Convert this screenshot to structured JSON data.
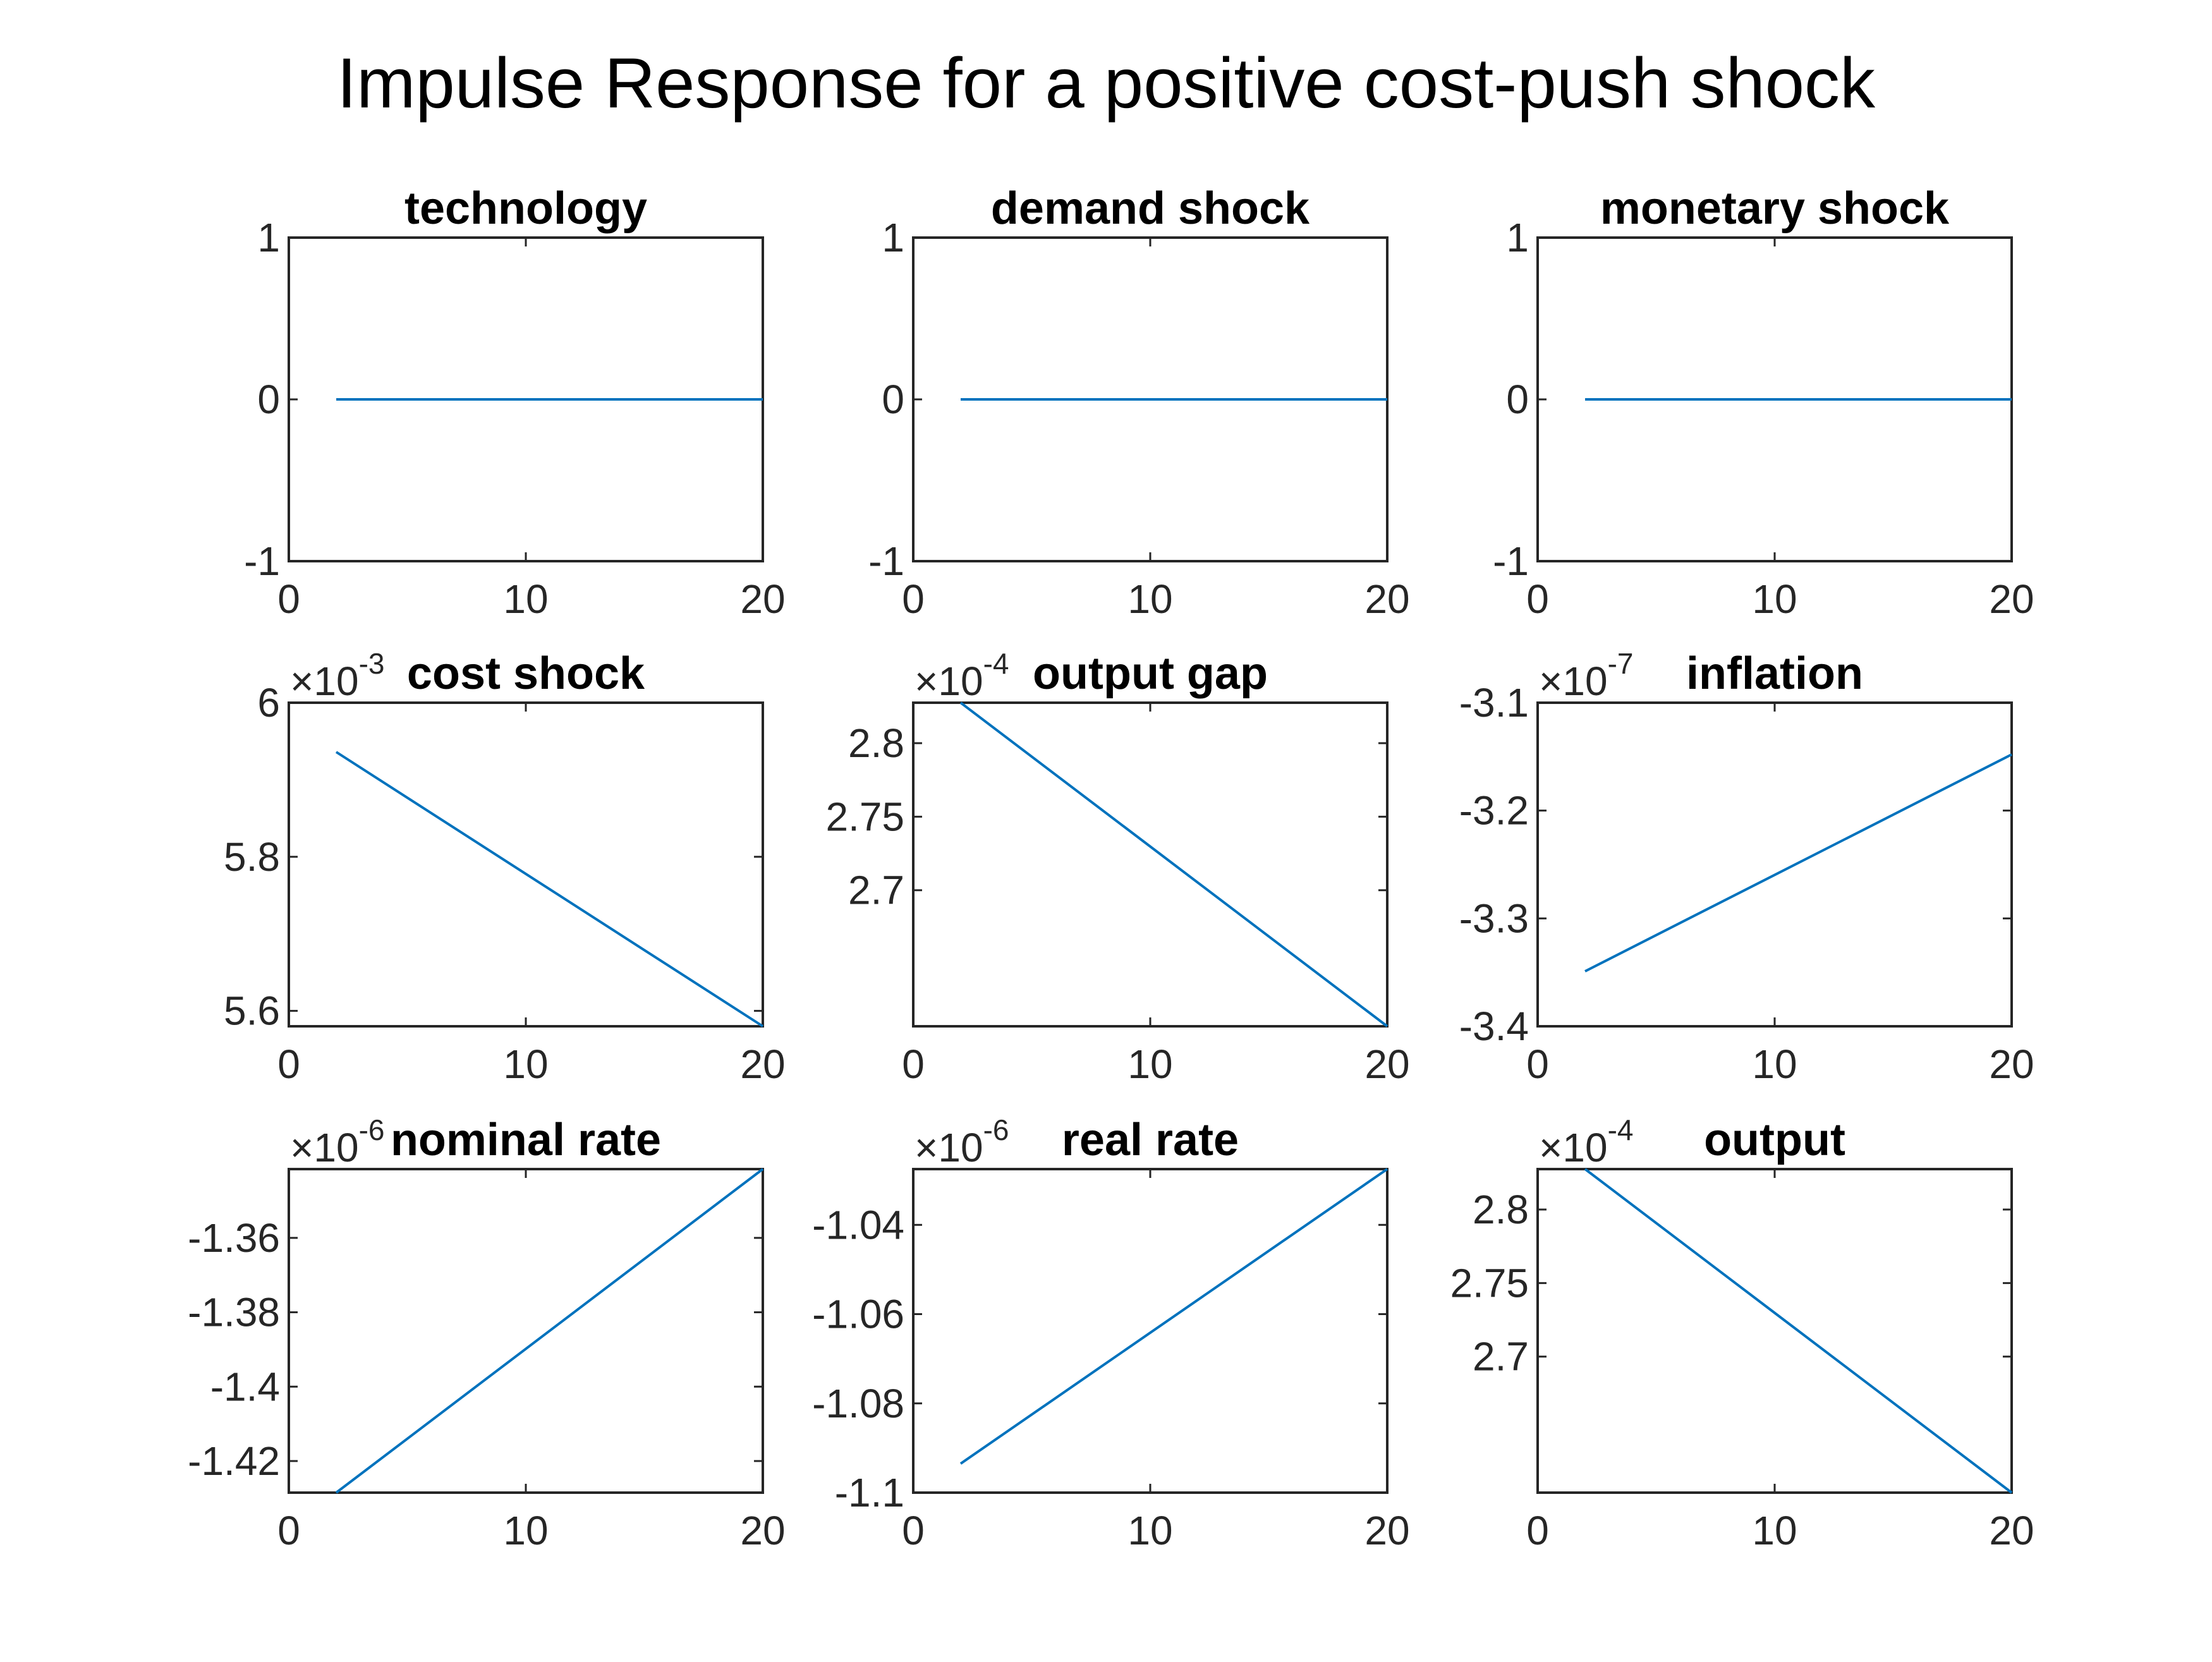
{
  "title": "Impulse Response for a positive cost-push shock",
  "colors": {
    "series": "#0072BD",
    "axes": "#262626",
    "background": "#ffffff"
  },
  "chart_data": [
    {
      "type": "line",
      "title": "technology",
      "exponent": "",
      "xlim": [
        0,
        20
      ],
      "ylim": [
        -1,
        1
      ],
      "xticks": [
        "0",
        "10",
        "20"
      ],
      "yticks": [
        -1,
        0,
        1
      ],
      "yticklabels": [
        "-1",
        "0",
        "1"
      ],
      "x": [
        2,
        20
      ],
      "y": [
        0,
        0
      ]
    },
    {
      "type": "line",
      "title": "demand shock",
      "exponent": "",
      "xlim": [
        0,
        20
      ],
      "ylim": [
        -1,
        1
      ],
      "xticks": [
        "0",
        "10",
        "20"
      ],
      "yticks": [
        -1,
        0,
        1
      ],
      "yticklabels": [
        "-1",
        "0",
        "1"
      ],
      "x": [
        2,
        20
      ],
      "y": [
        0,
        0
      ]
    },
    {
      "type": "line",
      "title": "monetary shock",
      "exponent": "",
      "xlim": [
        0,
        20
      ],
      "ylim": [
        -1,
        1
      ],
      "xticks": [
        "0",
        "10",
        "20"
      ],
      "yticks": [
        -1,
        0,
        1
      ],
      "yticklabels": [
        "-1",
        "0",
        "1"
      ],
      "x": [
        2,
        20
      ],
      "y": [
        0,
        0
      ]
    },
    {
      "type": "line",
      "title": "cost shock",
      "exponent": "-3",
      "xlim": [
        0,
        20
      ],
      "ylim": [
        5.58,
        6.0
      ],
      "xticks": [
        "0",
        "10",
        "20"
      ],
      "yticks": [
        5.6,
        5.8,
        6.0
      ],
      "yticklabels": [
        "5.6",
        "5.8",
        "6"
      ],
      "x": [
        2,
        20
      ],
      "y": [
        5.936,
        5.58
      ]
    },
    {
      "type": "line",
      "title": "output gap",
      "exponent": "-4",
      "xlim": [
        0,
        20
      ],
      "ylim": [
        2.6075,
        2.8275
      ],
      "xticks": [
        "0",
        "10",
        "20"
      ],
      "yticks": [
        2.7,
        2.75,
        2.8
      ],
      "yticklabels": [
        "2.7",
        "2.75",
        "2.8"
      ],
      "x": [
        2,
        20
      ],
      "y": [
        2.8275,
        2.6075
      ]
    },
    {
      "type": "line",
      "title": "inflation",
      "exponent": "-7",
      "xlim": [
        0,
        20
      ],
      "ylim": [
        -3.4,
        -3.1
      ],
      "xticks": [
        "0",
        "10",
        "20"
      ],
      "yticks": [
        -3.4,
        -3.3,
        -3.2,
        -3.1
      ],
      "yticklabels": [
        "-3.4",
        "-3.3",
        "-3.2",
        "-3.1"
      ],
      "x": [
        2,
        20
      ],
      "y": [
        -3.349,
        -3.148
      ]
    },
    {
      "type": "line",
      "title": "nominal rate",
      "exponent": "-6",
      "xlim": [
        0,
        20
      ],
      "ylim": [
        -1.4285,
        -1.3415
      ],
      "xticks": [
        "0",
        "10",
        "20"
      ],
      "yticks": [
        -1.42,
        -1.4,
        -1.38,
        -1.36
      ],
      "yticklabels": [
        "-1.42",
        "-1.4",
        "-1.38",
        "-1.36"
      ],
      "x": [
        2,
        20
      ],
      "y": [
        -1.4285,
        -1.3415
      ]
    },
    {
      "type": "line",
      "title": "real rate",
      "exponent": "-6",
      "xlim": [
        0,
        20
      ],
      "ylim": [
        -1.1,
        -1.0275
      ],
      "xticks": [
        "0",
        "10",
        "20"
      ],
      "yticks": [
        -1.1,
        -1.08,
        -1.06,
        -1.04
      ],
      "yticklabels": [
        "-1.1",
        "-1.08",
        "-1.06",
        "-1.04"
      ],
      "x": [
        2,
        20
      ],
      "y": [
        -1.0935,
        -1.0275
      ]
    },
    {
      "type": "line",
      "title": "output",
      "exponent": "-4",
      "xlim": [
        0,
        20
      ],
      "ylim": [
        2.6075,
        2.8275
      ],
      "xticks": [
        "0",
        "10",
        "20"
      ],
      "yticks": [
        2.7,
        2.75,
        2.8
      ],
      "yticklabels": [
        "2.7",
        "2.75",
        "2.8"
      ],
      "x": [
        2,
        20
      ],
      "y": [
        2.8275,
        2.6075
      ]
    }
  ]
}
